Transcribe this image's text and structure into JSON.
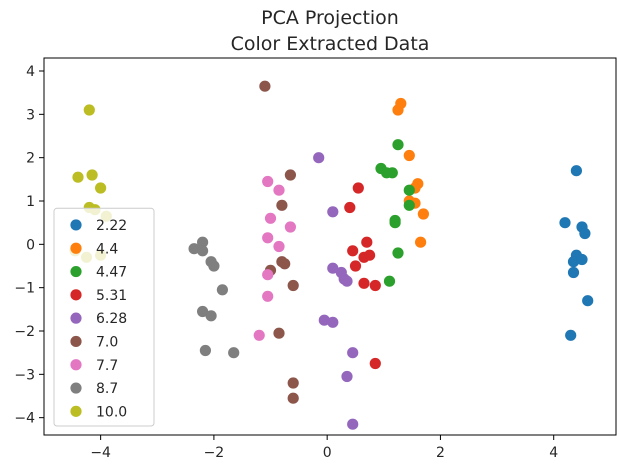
{
  "chart_data": {
    "type": "scatter",
    "title": "PCA Projection",
    "subtitle": "Color Extracted Data",
    "xlabel": "",
    "ylabel": "",
    "xlim": [
      -5.0,
      5.1
    ],
    "ylim": [
      -4.4,
      4.3
    ],
    "xticks": [
      -4,
      -2,
      0,
      2,
      4
    ],
    "yticks": [
      -4,
      -3,
      -2,
      -1,
      0,
      1,
      2,
      3,
      4
    ],
    "xtick_labels": [
      "−4",
      "−2",
      "0",
      "2",
      "4"
    ],
    "ytick_labels": [
      "−4",
      "−3",
      "−2",
      "−1",
      "0",
      "1",
      "2",
      "3",
      "4"
    ],
    "grid": false,
    "legend_position": "lower-left",
    "series": [
      {
        "name": "2.22",
        "color": "#1f77b4",
        "points": [
          [
            4.4,
            1.7
          ],
          [
            4.2,
            0.5
          ],
          [
            4.5,
            0.4
          ],
          [
            4.55,
            0.25
          ],
          [
            4.4,
            -0.25
          ],
          [
            4.35,
            -0.4
          ],
          [
            4.5,
            -0.35
          ],
          [
            4.35,
            -0.65
          ],
          [
            4.6,
            -1.3
          ],
          [
            4.3,
            -2.1
          ]
        ]
      },
      {
        "name": "4.4",
        "color": "#ff7f0e",
        "points": [
          [
            1.3,
            3.25
          ],
          [
            1.25,
            3.1
          ],
          [
            1.45,
            2.05
          ],
          [
            1.6,
            1.4
          ],
          [
            1.55,
            1.3
          ],
          [
            1.45,
            1.0
          ],
          [
            1.55,
            0.95
          ],
          [
            1.7,
            0.7
          ],
          [
            1.65,
            0.05
          ]
        ]
      },
      {
        "name": "4.47",
        "color": "#2ca02c",
        "points": [
          [
            1.25,
            2.3
          ],
          [
            0.95,
            1.75
          ],
          [
            1.05,
            1.65
          ],
          [
            1.15,
            1.65
          ],
          [
            1.45,
            1.25
          ],
          [
            1.45,
            0.9
          ],
          [
            1.2,
            0.55
          ],
          [
            1.2,
            0.5
          ],
          [
            1.25,
            -0.2
          ],
          [
            1.1,
            -0.85
          ]
        ]
      },
      {
        "name": "5.31",
        "color": "#d62728",
        "points": [
          [
            0.55,
            1.3
          ],
          [
            0.4,
            0.85
          ],
          [
            0.7,
            0.05
          ],
          [
            0.45,
            -0.15
          ],
          [
            0.75,
            -0.25
          ],
          [
            0.65,
            -0.3
          ],
          [
            0.5,
            -0.5
          ],
          [
            0.65,
            -0.9
          ],
          [
            0.85,
            -0.95
          ],
          [
            0.85,
            -2.75
          ]
        ]
      },
      {
        "name": "6.28",
        "color": "#9467bd",
        "points": [
          [
            -0.15,
            2.0
          ],
          [
            0.1,
            0.75
          ],
          [
            0.1,
            -0.55
          ],
          [
            0.25,
            -0.65
          ],
          [
            0.3,
            -0.8
          ],
          [
            0.35,
            -0.85
          ],
          [
            -0.05,
            -1.75
          ],
          [
            0.1,
            -1.8
          ],
          [
            0.45,
            -2.5
          ],
          [
            0.35,
            -3.05
          ],
          [
            0.45,
            -4.15
          ]
        ]
      },
      {
        "name": "7.0",
        "color": "#8c564b",
        "points": [
          [
            -1.1,
            3.65
          ],
          [
            -0.65,
            1.6
          ],
          [
            -0.8,
            0.9
          ],
          [
            -1.0,
            -0.6
          ],
          [
            -0.8,
            -0.4
          ],
          [
            -0.75,
            -0.45
          ],
          [
            -0.6,
            -0.95
          ],
          [
            -0.85,
            -2.05
          ],
          [
            -0.6,
            -3.2
          ],
          [
            -0.6,
            -3.55
          ]
        ]
      },
      {
        "name": "7.7",
        "color": "#e377c2",
        "points": [
          [
            -1.05,
            1.45
          ],
          [
            -0.85,
            1.25
          ],
          [
            -1.0,
            0.6
          ],
          [
            -0.65,
            0.4
          ],
          [
            -1.05,
            0.15
          ],
          [
            -0.85,
            -0.05
          ],
          [
            -1.05,
            -0.7
          ],
          [
            -1.05,
            -1.2
          ],
          [
            -1.2,
            -2.1
          ]
        ]
      },
      {
        "name": "8.7",
        "color": "#7f7f7f",
        "points": [
          [
            -2.35,
            -0.1
          ],
          [
            -2.2,
            0.05
          ],
          [
            -2.2,
            -0.15
          ],
          [
            -2.05,
            -0.4
          ],
          [
            -2.0,
            -0.5
          ],
          [
            -1.85,
            -1.05
          ],
          [
            -2.2,
            -1.55
          ],
          [
            -2.05,
            -1.65
          ],
          [
            -2.15,
            -2.45
          ],
          [
            -1.65,
            -2.5
          ]
        ]
      },
      {
        "name": "10.0",
        "color": "#bcbd22",
        "points": [
          [
            -4.2,
            3.1
          ],
          [
            -4.4,
            1.55
          ],
          [
            -4.15,
            1.6
          ],
          [
            -4.0,
            1.3
          ],
          [
            -4.2,
            0.85
          ],
          [
            -4.1,
            0.8
          ],
          [
            -3.9,
            0.65
          ],
          [
            -4.45,
            -0.15
          ],
          [
            -4.25,
            -0.3
          ],
          [
            -4.0,
            -0.25
          ]
        ]
      }
    ]
  }
}
